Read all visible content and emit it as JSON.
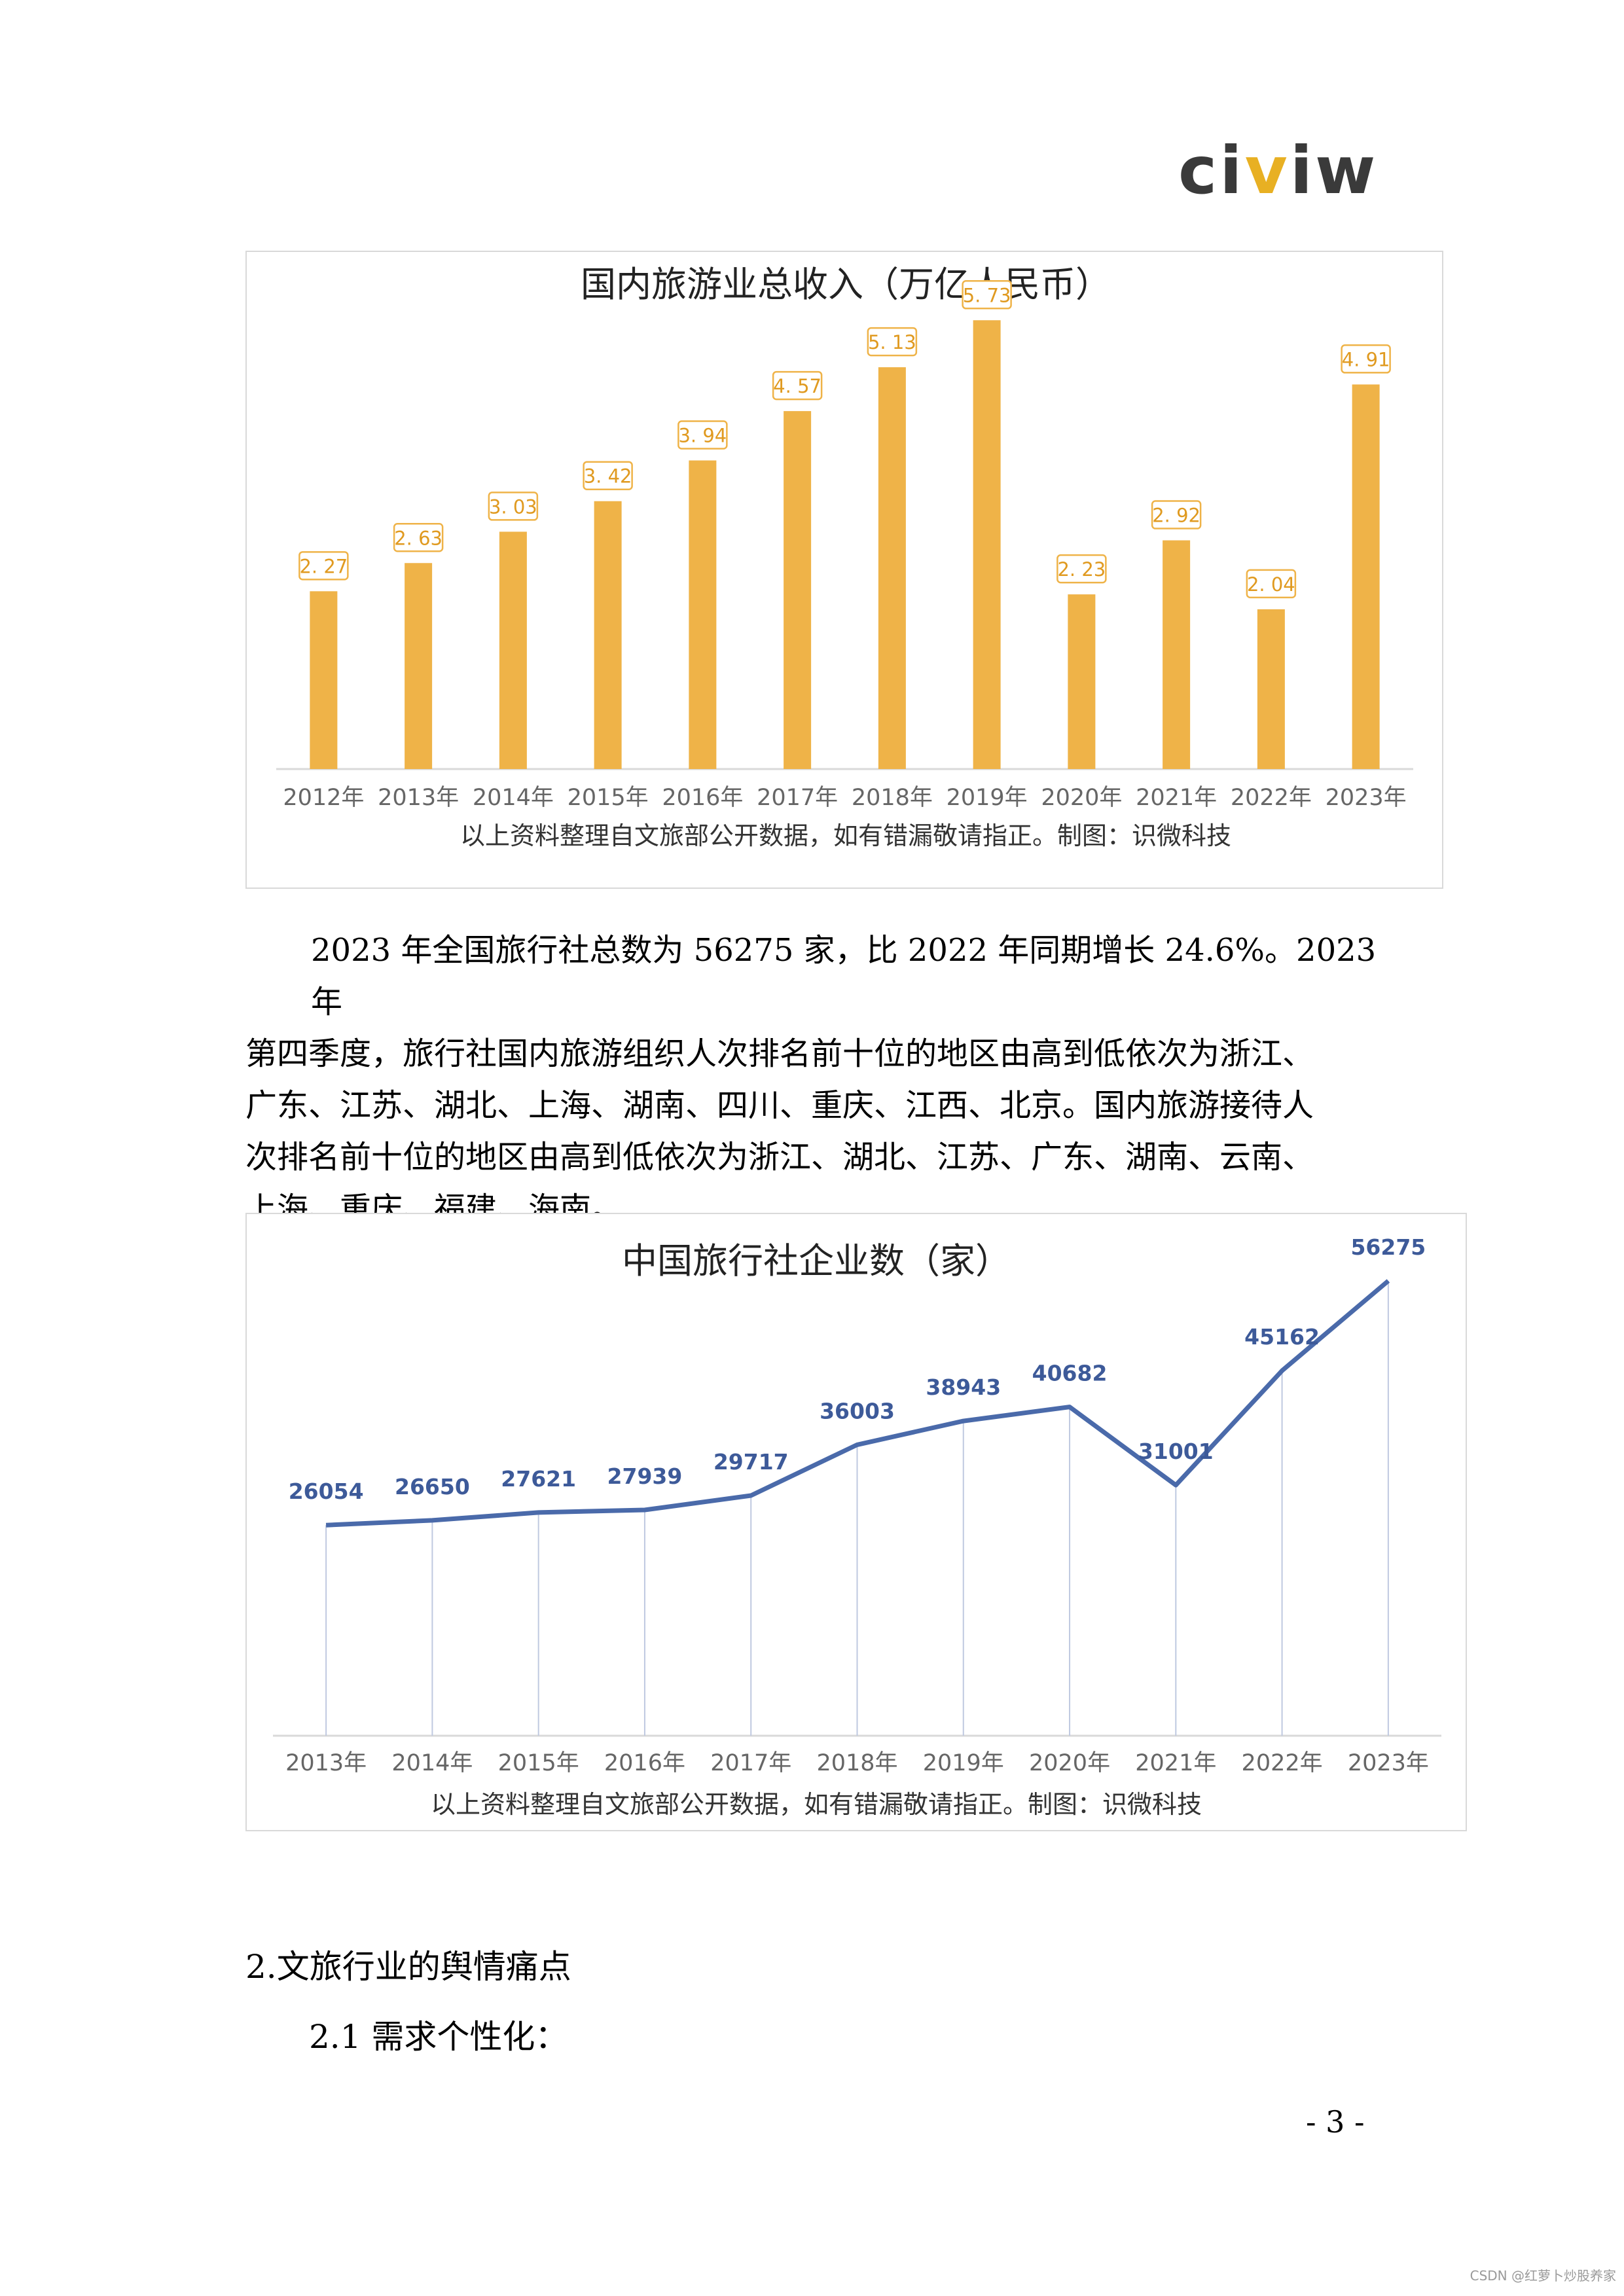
{
  "logo": {
    "text": "civiw",
    "color_dark": "#3a3a3a",
    "color_accent": "#e8b023"
  },
  "chart1": {
    "chart_data": {
      "type": "bar",
      "title": "国内旅游业总收入（万亿人民币）",
      "categories": [
        "2012年",
        "2013年",
        "2014年",
        "2015年",
        "2016年",
        "2017年",
        "2018年",
        "2019年",
        "2020年",
        "2021年",
        "2022年",
        "2023年"
      ],
      "values": [
        2.27,
        2.63,
        3.03,
        3.42,
        3.94,
        4.57,
        5.13,
        5.73,
        2.23,
        2.92,
        2.04,
        4.91
      ],
      "value_labels": [
        "2. 27",
        "2. 63",
        "3. 03",
        "3. 42",
        "3. 94",
        "4. 57",
        "5. 13",
        "5. 73",
        "2. 23",
        "2. 92",
        "2. 04",
        "4. 91"
      ],
      "ylim": [
        0,
        6.1
      ],
      "bar_color": "#efb348",
      "grid": false,
      "note": "以上资料整理自文旅部公开数据，如有错漏敬请指正。制图：识微科技"
    }
  },
  "paragraph": {
    "lines": [
      "2023 年全国旅行社总数为 56275 家，比 2022 年同期增长 24.6%。2023 年",
      "第四季度，旅行社国内旅游组织人次排名前十位的地区由高到低依次为浙江、",
      "广东、江苏、湖北、上海、湖南、四川、重庆、江西、北京。国内旅游接待人",
      "次排名前十位的地区由高到低依次为浙江、湖北、江苏、广东、湖南、云南、",
      "上海、重庆、福建、海南。"
    ]
  },
  "chart2": {
    "chart_data": {
      "type": "line",
      "title": "中国旅行社企业数（家）",
      "categories": [
        "2013年",
        "2014年",
        "2015年",
        "2016年",
        "2017年",
        "2018年",
        "2019年",
        "2020年",
        "2021年",
        "2022年",
        "2023年"
      ],
      "values": [
        26054,
        26650,
        27621,
        27939,
        29717,
        36003,
        38943,
        40682,
        31001,
        45162,
        56275
      ],
      "ylim": [
        0,
        60000
      ],
      "line_color": "#4a6aaa",
      "label_color": "#3d5a99",
      "grid": false,
      "note": "以上资料整理自文旅部公开数据，如有错漏敬请指正。制图：识微科技"
    }
  },
  "section": {
    "heading": "2.文旅行业的舆情痛点",
    "subheading": "2.1 需求个性化："
  },
  "page_number": "- 3 -",
  "watermark": "CSDN @红萝卜炒股养家"
}
